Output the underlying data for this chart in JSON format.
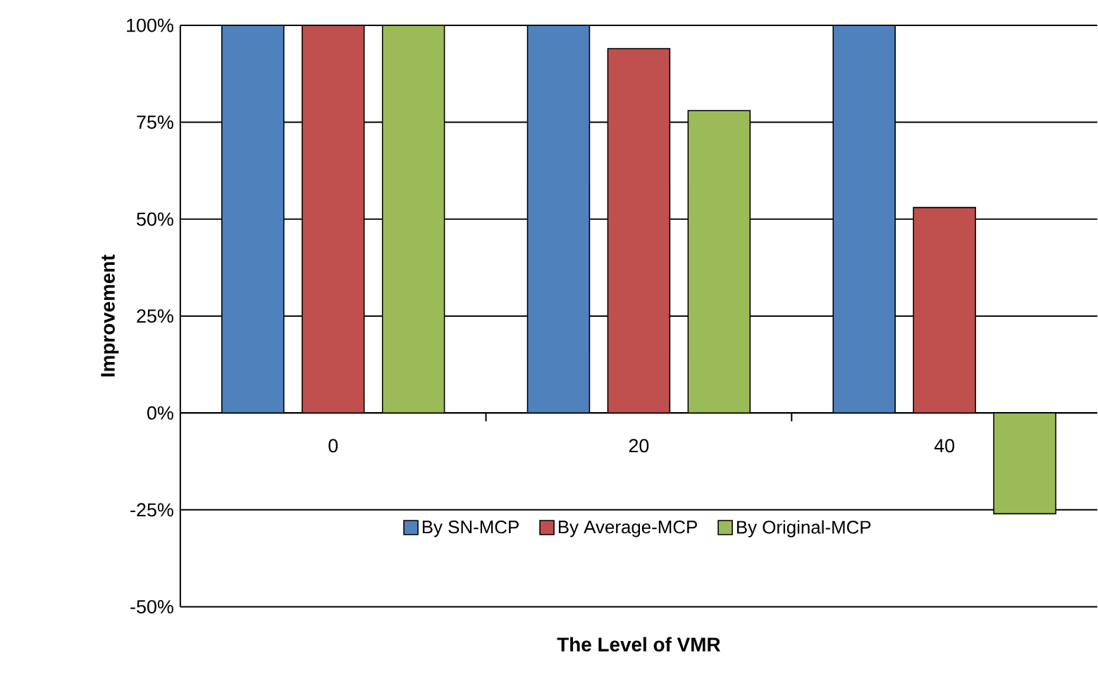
{
  "chart_data": {
    "type": "bar",
    "xlabel": "The Level of VMR",
    "ylabel": "Improvement",
    "categories": [
      "0",
      "20",
      "40"
    ],
    "series": [
      {
        "name": "By SN-MCP",
        "color": "#4f81bd",
        "values": [
          100,
          100,
          100
        ]
      },
      {
        "name": "By Average-MCP",
        "color": "#c0504d",
        "values": [
          100,
          94,
          53
        ]
      },
      {
        "name": "By Original-MCP",
        "color": "#9bbb59",
        "values": [
          100,
          78,
          -26
        ]
      }
    ],
    "ylim": [
      -50,
      100
    ],
    "yticks": [
      {
        "value": -50,
        "label": "-50%"
      },
      {
        "value": -25,
        "label": "-25%"
      },
      {
        "value": 0,
        "label": "0%"
      },
      {
        "value": 25,
        "label": "25%"
      },
      {
        "value": 50,
        "label": "50%"
      },
      {
        "value": 75,
        "label": "75%"
      },
      {
        "value": 100,
        "label": "100%"
      }
    ],
    "grid": "y",
    "legend": "bottom"
  }
}
